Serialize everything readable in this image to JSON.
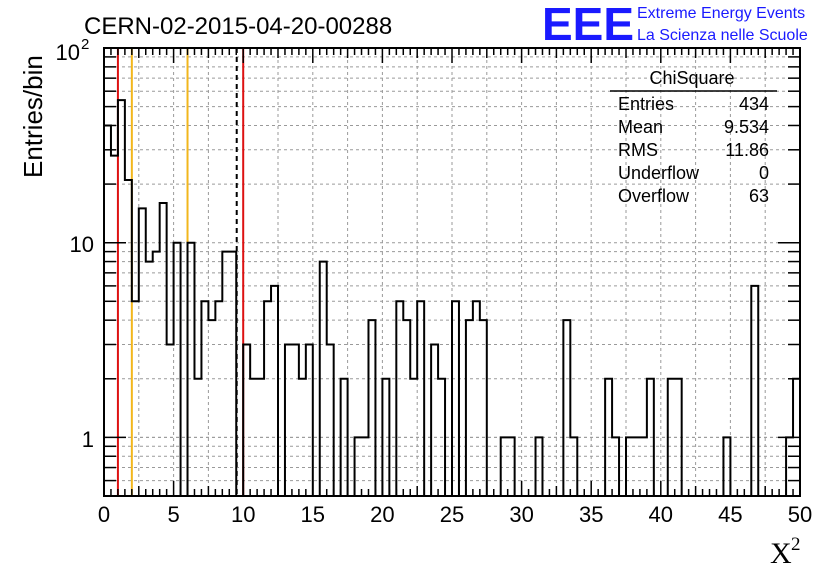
{
  "chart_data": {
    "type": "histogram",
    "title": "CERN-02-2015-04-20-00288",
    "xlabel": "X",
    "xlabel_superscript": "2",
    "ylabel": "Entries/bin",
    "xlim": [
      0,
      50
    ],
    "ylim": [
      0.5,
      100
    ],
    "log_y": true,
    "grid": true,
    "bin_width": 0.5,
    "x_ticks": [
      "0",
      "5",
      "10",
      "15",
      "20",
      "25",
      "30",
      "35",
      "40",
      "45",
      "50"
    ],
    "y_tick_labels": {
      "one": "1",
      "ten": "10",
      "hundred_base": "10",
      "hundred_exp": "2"
    },
    "counts": [
      40,
      28,
      54,
      21,
      5,
      15,
      8,
      9,
      16,
      3,
      10,
      0,
      10,
      2,
      5,
      4,
      5,
      9,
      9,
      0,
      3,
      2,
      2,
      5,
      6,
      0,
      3,
      3,
      2,
      3,
      0,
      8,
      3,
      0,
      2,
      0,
      1,
      1,
      4,
      0,
      2,
      0,
      5,
      4,
      2,
      5,
      0,
      3,
      2,
      0,
      5,
      0,
      4,
      5,
      4,
      0,
      0,
      1,
      1,
      0,
      0,
      0,
      1,
      0,
      0,
      0,
      4,
      1,
      0,
      0,
      0,
      0,
      2,
      1,
      0,
      1,
      1,
      1,
      2,
      0,
      0,
      2,
      2,
      0,
      0,
      0,
      0,
      0,
      0,
      1,
      0,
      0,
      0,
      6,
      0,
      0,
      0,
      0,
      1,
      2
    ],
    "vertical_lines": [
      {
        "x": 1,
        "color": "#dd1111",
        "style": "solid"
      },
      {
        "x": 2,
        "color": "#f2b61c",
        "style": "solid"
      },
      {
        "x": 6,
        "color": "#f2b61c",
        "style": "solid"
      },
      {
        "x": 9.534,
        "color": "#000000",
        "style": "dashed"
      },
      {
        "x": 10,
        "color": "#dd1111",
        "style": "solid"
      }
    ],
    "legend_position": "top-right"
  },
  "stats": {
    "title": "ChiSquare",
    "rows": [
      {
        "label": "Entries",
        "value": "434"
      },
      {
        "label": "Mean",
        "value": "9.534"
      },
      {
        "label": "RMS",
        "value": "11.86"
      },
      {
        "label": "Underflow",
        "value": "0"
      },
      {
        "label": "Overflow",
        "value": "63"
      }
    ]
  },
  "logo": {
    "mark": "EEE",
    "line1": "Extreme Energy Events",
    "line2": "La Scienza nelle Scuole",
    "color": "#1a1aff"
  }
}
